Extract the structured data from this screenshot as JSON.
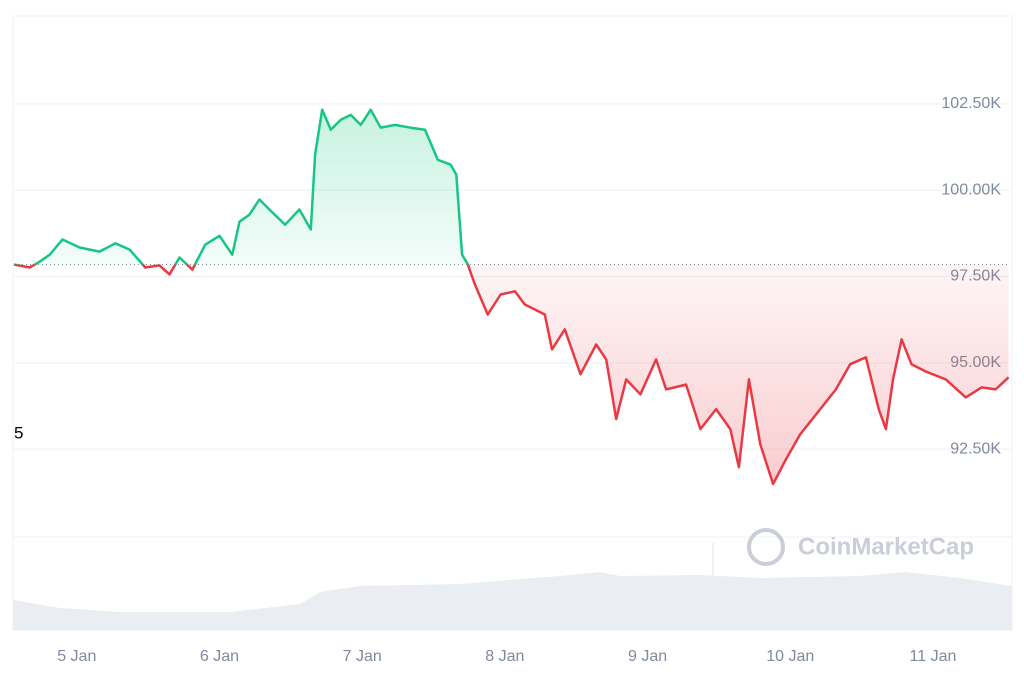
{
  "chart_data": {
    "type": "line",
    "x": [
      -0.44,
      -0.33,
      -0.26,
      -0.19,
      -0.1,
      0.02,
      0.16,
      0.27,
      0.37,
      0.48,
      0.58,
      0.65,
      0.72,
      0.81,
      0.9,
      1.0,
      1.09,
      1.14,
      1.21,
      1.28,
      1.35,
      1.46,
      1.56,
      1.64,
      1.67,
      1.72,
      1.78,
      1.85,
      1.92,
      1.99,
      2.06,
      2.13,
      2.23,
      2.34,
      2.44,
      2.53,
      2.62,
      2.66,
      2.7,
      2.74,
      2.79,
      2.88,
      2.97,
      3.07,
      3.14,
      3.28,
      3.33,
      3.42,
      3.53,
      3.64,
      3.71,
      3.78,
      3.85,
      3.95,
      4.06,
      4.13,
      4.27,
      4.37,
      4.48,
      4.58,
      4.64,
      4.71,
      4.79,
      4.88,
      4.97,
      5.07,
      5.21,
      5.32,
      5.42,
      5.53,
      5.62,
      5.67,
      5.72,
      5.78,
      5.85,
      5.95,
      6.09,
      6.23,
      6.34,
      6.44,
      6.53
    ],
    "series": [
      {
        "values": [
          97847,
          97760,
          97930,
          98130,
          98570,
          98340,
          98220,
          98460,
          98280,
          97760,
          97820,
          97560,
          98050,
          97700,
          98420,
          98680,
          98130,
          99090,
          99290,
          99730,
          99440,
          99000,
          99440,
          98860,
          101030,
          102330,
          101750,
          102040,
          102180,
          101890,
          102330,
          101810,
          101890,
          101810,
          101750,
          100880,
          100740,
          100450,
          98130,
          97850,
          97270,
          96400,
          96980,
          97070,
          96690,
          96400,
          95390,
          95970,
          94670,
          95530,
          95100,
          93370,
          94520,
          94090,
          95100,
          94230,
          94370,
          93080,
          93660,
          93080,
          91980,
          94520,
          92640,
          91490,
          92210,
          92930,
          93660,
          94230,
          94960,
          95160,
          93660,
          93080,
          94520,
          95680,
          94960,
          94750,
          94520,
          94000,
          94290,
          94230,
          94580
        ]
      }
    ],
    "baseline": 97847,
    "up_color": "#16c784",
    "down_color": "#ea3943",
    "xlim": [
      -0.44,
      6.54
    ],
    "xticks": [
      {
        "value": 0,
        "label": "5 Jan"
      },
      {
        "value": 1,
        "label": "6 Jan"
      },
      {
        "value": 2,
        "label": "7 Jan"
      },
      {
        "value": 3,
        "label": "8 Jan"
      },
      {
        "value": 4,
        "label": "9 Jan"
      },
      {
        "value": 5,
        "label": "10 Jan"
      },
      {
        "value": 6,
        "label": "11 Jan"
      }
    ],
    "ylim": [
      90000,
      105000
    ],
    "yticks": [
      {
        "value": 92500,
        "label": "92.50K"
      },
      {
        "value": 95000,
        "label": "95.00K"
      },
      {
        "value": 97500,
        "label": "97.50K"
      },
      {
        "value": 100000,
        "label": "100.00K"
      },
      {
        "value": 102500,
        "label": "102.50K"
      }
    ],
    "grid": true,
    "annotation": "5",
    "watermark": "CoinMarketCap"
  }
}
